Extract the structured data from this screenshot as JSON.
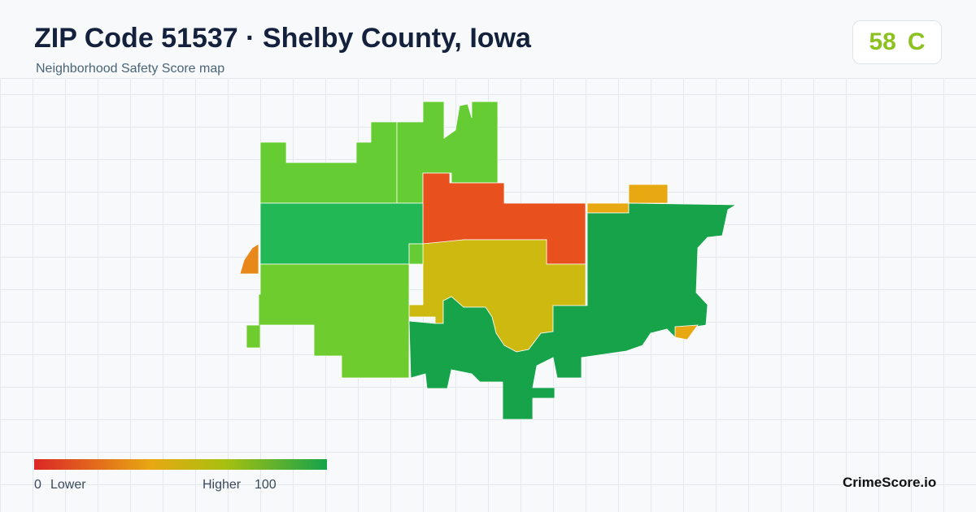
{
  "header": {
    "title": "ZIP Code 51537 · Shelby County, Iowa",
    "subtitle": "Neighborhood Safety Score map"
  },
  "score": {
    "value": 58,
    "grade": "C"
  },
  "legend": {
    "min": 0,
    "min_label": "Lower",
    "max_label": "Higher",
    "max": 100
  },
  "brand": "CrimeScore.io"
}
